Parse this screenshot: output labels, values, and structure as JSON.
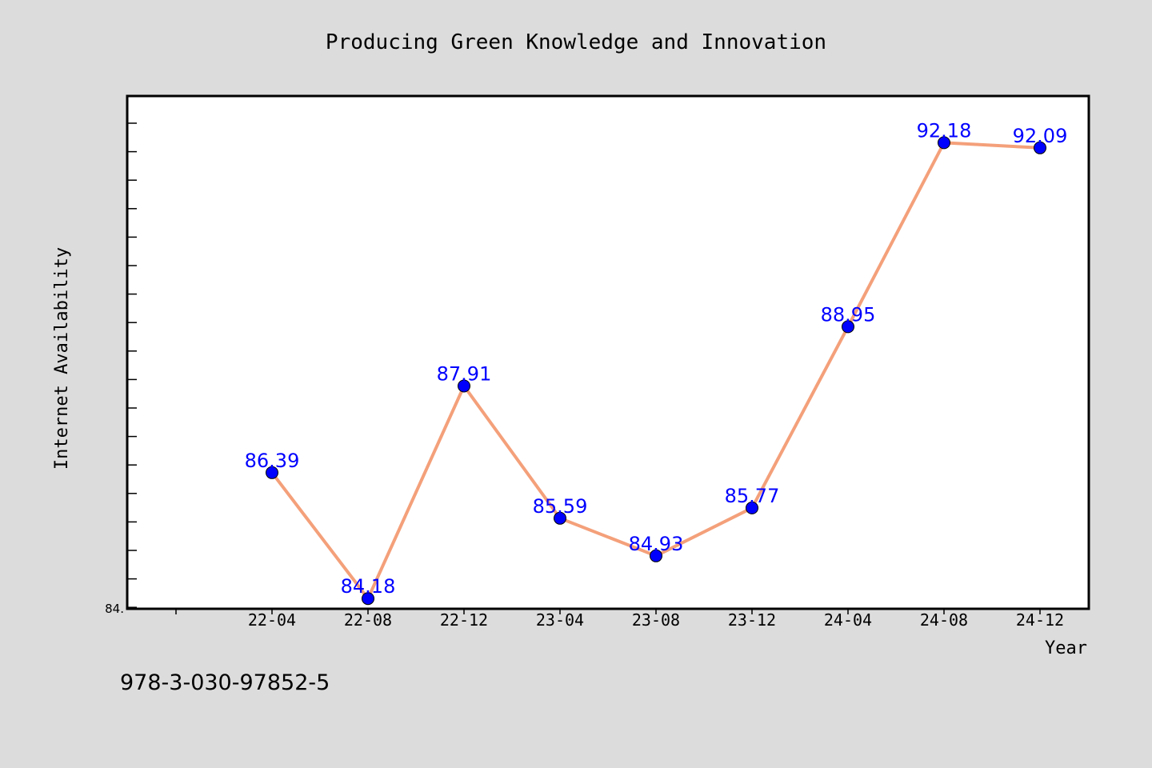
{
  "chart_data": {
    "type": "line",
    "title": "Producing Green Knowledge and Innovation",
    "xlabel": "Year",
    "ylabel": "Internet Availability",
    "categories": [
      "22-04",
      "22-08",
      "22-12",
      "23-04",
      "23-08",
      "23-12",
      "24-04",
      "24-08",
      "24-12"
    ],
    "series": [
      {
        "values": [
          86.39,
          84.18,
          87.91,
          85.59,
          84.93,
          85.77,
          88.95,
          92.18,
          92.09
        ],
        "line_color": "#f4a07a",
        "marker_color": "#0000ff"
      }
    ],
    "data_labels": [
      "86.39",
      "84.18",
      "87.91",
      "85.59",
      "84.93",
      "85.77",
      "88.95",
      "92.18",
      "92.09"
    ],
    "ylim": [
      84.0,
      93.0
    ],
    "y_tick_label": "84.",
    "grid": false,
    "label_color": "#0000ff"
  },
  "footer": {
    "text": "978-3-030-97852-5"
  },
  "colors": {
    "background": "#dcdcdc",
    "plot_background": "#ffffff"
  }
}
